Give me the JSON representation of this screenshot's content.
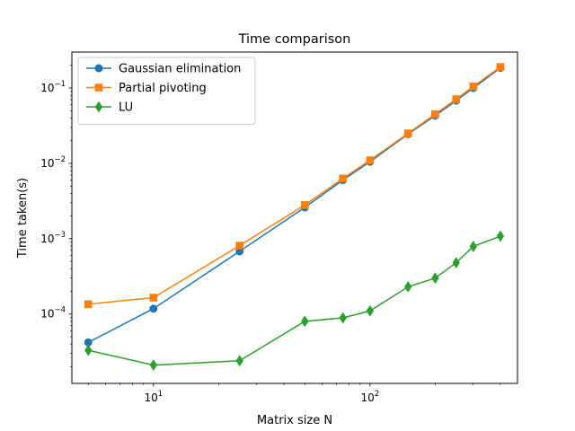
{
  "chart_data": {
    "type": "line",
    "title": "Time comparison",
    "xlabel": "Matrix size N",
    "ylabel": "Time taken(s)",
    "xscale": "log",
    "yscale": "log",
    "xlim": [
      4.2,
      480
    ],
    "ylim": [
      1.2e-05,
      0.3
    ],
    "x_ticks": [
      {
        "value": 10,
        "label_base": "10",
        "label_exp": "1"
      },
      {
        "value": 100,
        "label_base": "10",
        "label_exp": "2"
      }
    ],
    "y_ticks": [
      {
        "value": 0.0001,
        "label_base": "10",
        "label_exp": "−4"
      },
      {
        "value": 0.001,
        "label_base": "10",
        "label_exp": "−3"
      },
      {
        "value": 0.01,
        "label_base": "10",
        "label_exp": "−2"
      },
      {
        "value": 0.1,
        "label_base": "10",
        "label_exp": "−1"
      }
    ],
    "legend_position": "top-left",
    "grid": false,
    "x": [
      5,
      10,
      25,
      50,
      75,
      100,
      150,
      200,
      250,
      300,
      400
    ],
    "series": [
      {
        "name": "Gaussian elimination",
        "color": "#1f77b4",
        "marker": "circle",
        "values": [
          null,
          null,
          null,
          null,
          null,
          null,
          null,
          null,
          null,
          null,
          null
        ],
        "points": [
          [
            5,
            4.2e-05
          ],
          [
            10,
            0.000118
          ],
          [
            25,
            0.00068
          ],
          [
            50,
            0.0026
          ],
          [
            75,
            0.006
          ],
          [
            100,
            0.0105
          ],
          [
            150,
            0.0245
          ],
          [
            200,
            0.043
          ],
          [
            250,
            0.068
          ],
          [
            300,
            0.1
          ],
          [
            400,
            0.185
          ]
        ]
      },
      {
        "name": "Partial pivoting",
        "color": "#ff7f0e",
        "marker": "square",
        "values": [
          null,
          null,
          null,
          null,
          null,
          null,
          null,
          null,
          null,
          null,
          null
        ],
        "points": [
          [
            5,
            0.000135
          ],
          [
            10,
            0.000165
          ],
          [
            25,
            0.00081
          ],
          [
            50,
            0.0028
          ],
          [
            75,
            0.0063
          ],
          [
            100,
            0.011
          ],
          [
            150,
            0.025
          ],
          [
            200,
            0.045
          ],
          [
            250,
            0.071
          ],
          [
            300,
            0.105
          ],
          [
            400,
            0.19
          ]
        ]
      },
      {
        "name": "LU",
        "color": "#2ca02c",
        "marker": "diamond",
        "values": [
          null,
          null,
          null,
          null,
          null,
          null,
          null,
          null,
          null,
          null,
          null
        ],
        "points": [
          [
            5,
            3.3e-05
          ],
          [
            10,
            2.1e-05
          ],
          [
            25,
            2.4e-05
          ],
          [
            50,
            8e-05
          ],
          [
            75,
            8.9e-05
          ],
          [
            100,
            0.00011
          ],
          [
            150,
            0.00023
          ],
          [
            200,
            0.0003
          ],
          [
            250,
            0.00048
          ],
          [
            300,
            0.00079
          ],
          [
            400,
            0.00108
          ]
        ]
      }
    ]
  }
}
